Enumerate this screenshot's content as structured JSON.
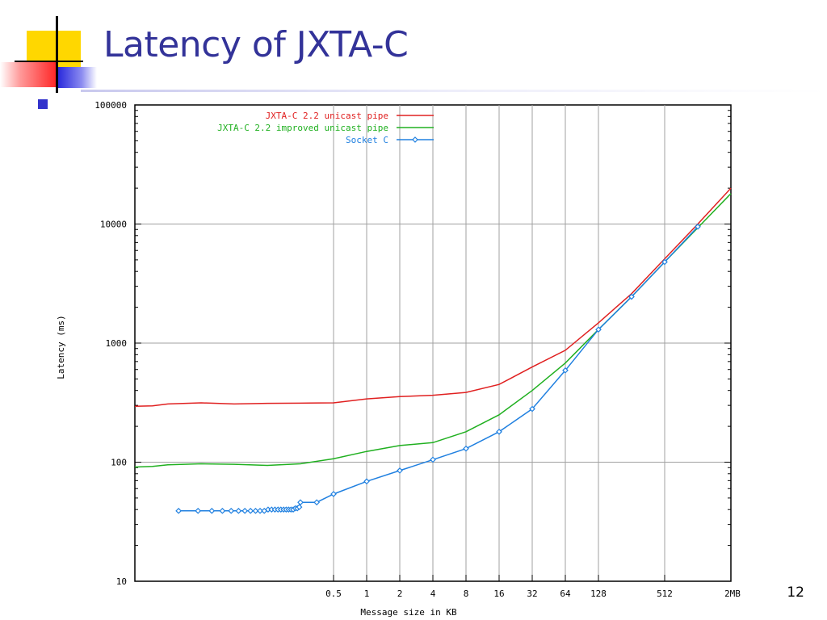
{
  "slide": {
    "title": "Latency of JXTA-C",
    "page_number": "12",
    "title_color": "#333399"
  },
  "chart_data": {
    "type": "line",
    "title": "",
    "xlabel": "Message size in KB",
    "ylabel": "Latency (ms)",
    "x_scale": "log2",
    "y_scale": "log10",
    "xlim": [
      0.0078125,
      2048
    ],
    "ylim": [
      10,
      100000
    ],
    "grid": true,
    "legend_position": "top-right",
    "x_ticks": [
      {
        "value": 0.5,
        "label": "0.5"
      },
      {
        "value": 1,
        "label": "1"
      },
      {
        "value": 2,
        "label": "2"
      },
      {
        "value": 4,
        "label": "4"
      },
      {
        "value": 8,
        "label": "8"
      },
      {
        "value": 16,
        "label": "16"
      },
      {
        "value": 32,
        "label": "32"
      },
      {
        "value": 64,
        "label": "64"
      },
      {
        "value": 128,
        "label": "128"
      },
      {
        "value": 512,
        "label": "512"
      },
      {
        "value": 2048,
        "label": "2MB"
      }
    ],
    "y_ticks": [
      {
        "value": 10,
        "label": "10"
      },
      {
        "value": 100,
        "label": "100"
      },
      {
        "value": 1000,
        "label": "1000"
      },
      {
        "value": 10000,
        "label": "10000"
      },
      {
        "value": 100000,
        "label": "100000"
      }
    ],
    "series": [
      {
        "name": "JXTA-C 2.2 unicast pipe",
        "color": "#e02020",
        "marker": "none",
        "points": [
          [
            0.0078125,
            295
          ],
          [
            0.0113,
            297
          ],
          [
            0.0156,
            308
          ],
          [
            0.0313,
            315
          ],
          [
            0.0625,
            308
          ],
          [
            0.125,
            312
          ],
          [
            0.25,
            313
          ],
          [
            0.5,
            315
          ],
          [
            1,
            340
          ],
          [
            2,
            355
          ],
          [
            4,
            365
          ],
          [
            8,
            385
          ],
          [
            16,
            450
          ],
          [
            32,
            630
          ],
          [
            64,
            870
          ],
          [
            128,
            1480
          ],
          [
            256,
            2600
          ],
          [
            512,
            5100
          ],
          [
            1024,
            10000
          ],
          [
            2048,
            20000
          ]
        ]
      },
      {
        "name": "JXTA-C 2.2 improved unicast pipe",
        "color": "#20b020",
        "marker": "none",
        "points": [
          [
            0.0078125,
            91
          ],
          [
            0.0113,
            92
          ],
          [
            0.0156,
            95
          ],
          [
            0.0313,
            97
          ],
          [
            0.0625,
            96
          ],
          [
            0.125,
            94
          ],
          [
            0.25,
            97
          ],
          [
            0.5,
            107
          ],
          [
            1,
            123
          ],
          [
            2,
            138
          ],
          [
            4,
            146
          ],
          [
            8,
            180
          ],
          [
            16,
            250
          ],
          [
            32,
            400
          ],
          [
            64,
            680
          ],
          [
            128,
            1300
          ],
          [
            256,
            2450
          ],
          [
            512,
            4800
          ],
          [
            1024,
            9300
          ],
          [
            2048,
            18000
          ]
        ]
      },
      {
        "name": "Socket C",
        "color": "#2080e0",
        "marker": "diamond",
        "points": [
          [
            0.0195,
            39
          ],
          [
            0.0293,
            39
          ],
          [
            0.0391,
            39
          ],
          [
            0.0488,
            39
          ],
          [
            0.0586,
            39
          ],
          [
            0.0684,
            39
          ],
          [
            0.0781,
            39
          ],
          [
            0.0879,
            39
          ],
          [
            0.0977,
            39
          ],
          [
            0.1074,
            39
          ],
          [
            0.1172,
            39
          ],
          [
            0.127,
            40
          ],
          [
            0.1367,
            40
          ],
          [
            0.1465,
            40
          ],
          [
            0.1563,
            40
          ],
          [
            0.166,
            40
          ],
          [
            0.1758,
            40
          ],
          [
            0.1855,
            40
          ],
          [
            0.1953,
            40
          ],
          [
            0.2051,
            40
          ],
          [
            0.2148,
            40
          ],
          [
            0.2246,
            41
          ],
          [
            0.2344,
            41
          ],
          [
            0.2441,
            42
          ],
          [
            0.25,
            46
          ],
          [
            0.3516,
            46
          ],
          [
            0.5,
            54
          ],
          [
            1,
            69
          ],
          [
            2,
            85
          ],
          [
            4,
            105
          ],
          [
            8,
            130
          ],
          [
            16,
            180
          ],
          [
            32,
            280
          ],
          [
            64,
            590
          ],
          [
            128,
            1300
          ],
          [
            256,
            2450
          ],
          [
            512,
            4800
          ],
          [
            1024,
            9500
          ]
        ]
      }
    ]
  }
}
